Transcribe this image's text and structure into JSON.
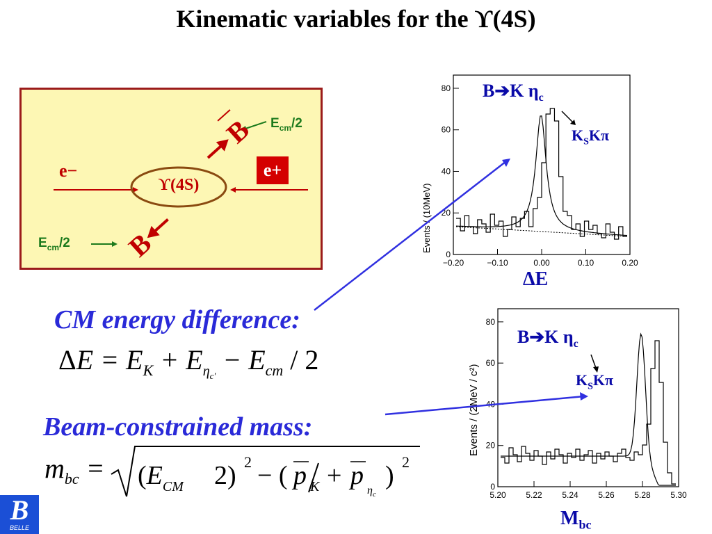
{
  "slide": {
    "title": "Kinematic variables for the ϒ(4S)"
  },
  "diagram": {
    "e_minus": "e−",
    "e_plus": "e+",
    "upsilon": "ϒ(4S)",
    "b_label": "B",
    "ecm_top": "E",
    "ecm_top_sub": "cm",
    "ecm_top_div": "/2",
    "ecm_bottom": "E",
    "ecm_bottom_sub": "cm",
    "ecm_bottom_div": "/2"
  },
  "headings": {
    "cm_energy": "CM energy difference:",
    "beam_mass": "Beam-constrained mass:"
  },
  "plots": {
    "delta_e": {
      "decay_b": "B",
      "decay_rest": "K η",
      "decay_sub": "c",
      "mode": "K",
      "mode_sub": "S",
      "mode_rest": "Kπ",
      "xlabel": "ΔE",
      "ylabel": "Events / (10MeV)",
      "xticks": [
        "−0.20",
        "−0.10",
        "0.00",
        "0.10",
        "0.20"
      ],
      "yticks": [
        "0",
        "20",
        "40",
        "60",
        "80"
      ]
    },
    "mbc": {
      "decay_b": "B",
      "decay_rest": "K η",
      "decay_sub": "c",
      "mode": "K",
      "mode_sub": "S",
      "mode_rest": "Kπ",
      "xlabel_main": "M",
      "xlabel_sub": "bc",
      "ylabel": "Events / (2MeV / c²)",
      "xticks": [
        "5.20",
        "5.22",
        "5.24",
        "5.26",
        "5.28",
        "5.30"
      ],
      "yticks": [
        "0",
        "20",
        "40",
        "60",
        "80"
      ]
    }
  },
  "logo": {
    "letter": "B",
    "text": "BELLE",
    "color": "#1b4fd6"
  },
  "colors": {
    "accent_blue": "#2a2ad8",
    "arrow_blue": "#3030e0",
    "diagram_bg": "#fdf7b4",
    "diagram_border": "#9b1b1b",
    "ecm_green": "#1c7a1c",
    "particle_red": "#c00000"
  }
}
